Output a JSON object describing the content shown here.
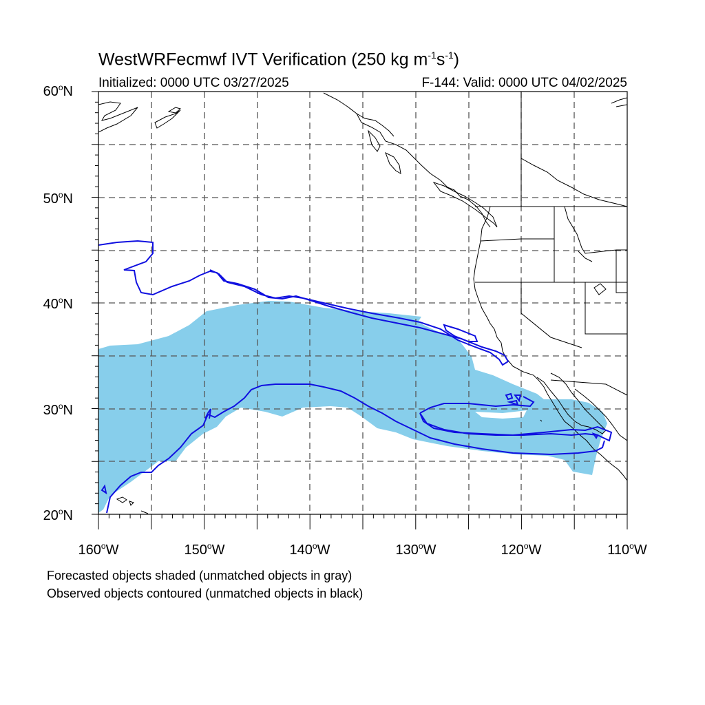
{
  "header": {
    "title_main": "WestWRFecmwf IVT Verification (250 kg m",
    "title_exp1": "-1",
    "title_mid": "s",
    "title_exp2": "-1",
    "title_end": ")",
    "initialized": "Initialized: 0000 UTC 03/27/2025",
    "valid": "F-144: Valid: 0000 UTC 04/02/2025"
  },
  "map": {
    "lat_labels": [
      {
        "text": "60",
        "suffix": "N"
      },
      {
        "text": "50",
        "suffix": "N"
      },
      {
        "text": "40",
        "suffix": "N"
      },
      {
        "text": "30",
        "suffix": "N"
      },
      {
        "text": "20",
        "suffix": "N"
      }
    ],
    "lon_labels": [
      {
        "text": "160",
        "suffix": "W"
      },
      {
        "text": "150",
        "suffix": "W"
      },
      {
        "text": "140",
        "suffix": "W"
      },
      {
        "text": "130",
        "suffix": "W"
      },
      {
        "text": "120",
        "suffix": "W"
      },
      {
        "text": "110",
        "suffix": "W"
      }
    ],
    "extent": {
      "lon": [
        -160,
        -110
      ],
      "lat": [
        20,
        60
      ]
    },
    "colors": {
      "forecast_fill": "#87ceeb",
      "observed_contour": "#1010e0",
      "coast": "#000000",
      "grid": "#555555"
    }
  },
  "notes": {
    "line1": "Forecasted objects shaded (unmatched objects in gray)",
    "line2": "Observed objects contoured (unmatched objects in black)"
  }
}
